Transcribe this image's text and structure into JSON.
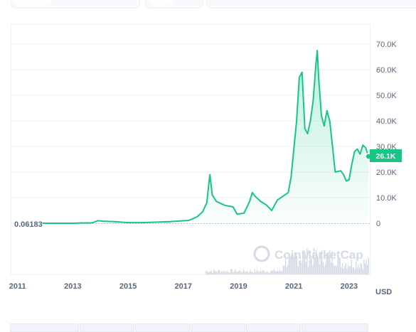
{
  "chart_data": {
    "type": "area",
    "yaxis": {
      "ticks": [
        "70.0K",
        "60.0K",
        "50.0K",
        "40.0K",
        "30.0K",
        "20.0K",
        "10.0K",
        "0"
      ],
      "range": [
        0,
        70000
      ]
    },
    "xaxis": {
      "ticks": [
        "2011",
        "2013",
        "2015",
        "2017",
        "2019",
        "2021",
        "2023"
      ],
      "range": [
        2010.75,
        2023.75
      ]
    },
    "currency": "USD",
    "start_label": "0.06183",
    "current_value_label": "26.1K",
    "watermark": "CoinMarketCap",
    "series": [
      {
        "values": [
          [
            2011.9,
            3
          ],
          [
            2012.5,
            6
          ],
          [
            2013.0,
            13
          ],
          [
            2013.3,
            100
          ],
          [
            2013.7,
            130
          ],
          [
            2013.9,
            1000
          ],
          [
            2014.1,
            800
          ],
          [
            2014.5,
            600
          ],
          [
            2015.0,
            250
          ],
          [
            2015.5,
            260
          ],
          [
            2016.0,
            420
          ],
          [
            2016.5,
            650
          ],
          [
            2016.9,
            900
          ],
          [
            2017.2,
            1100
          ],
          [
            2017.5,
            2500
          ],
          [
            2017.7,
            4500
          ],
          [
            2017.85,
            8000
          ],
          [
            2017.96,
            19000
          ],
          [
            2018.05,
            11000
          ],
          [
            2018.2,
            8500
          ],
          [
            2018.5,
            7000
          ],
          [
            2018.8,
            6400
          ],
          [
            2018.95,
            3500
          ],
          [
            2019.2,
            4000
          ],
          [
            2019.4,
            8500
          ],
          [
            2019.5,
            12000
          ],
          [
            2019.6,
            10500
          ],
          [
            2019.8,
            8500
          ],
          [
            2020.0,
            7200
          ],
          [
            2020.2,
            5000
          ],
          [
            2020.4,
            9000
          ],
          [
            2020.6,
            10500
          ],
          [
            2020.8,
            12000
          ],
          [
            2020.9,
            18000
          ],
          [
            2021.0,
            29000
          ],
          [
            2021.1,
            40000
          ],
          [
            2021.2,
            57000
          ],
          [
            2021.3,
            59000
          ],
          [
            2021.4,
            37000
          ],
          [
            2021.5,
            35000
          ],
          [
            2021.6,
            40000
          ],
          [
            2021.7,
            48000
          ],
          [
            2021.8,
            62000
          ],
          [
            2021.85,
            67500
          ],
          [
            2021.9,
            57000
          ],
          [
            2022.0,
            42000
          ],
          [
            2022.1,
            38000
          ],
          [
            2022.2,
            44000
          ],
          [
            2022.3,
            40000
          ],
          [
            2022.4,
            30000
          ],
          [
            2022.5,
            20000
          ],
          [
            2022.7,
            20500
          ],
          [
            2022.8,
            19000
          ],
          [
            2022.9,
            16500
          ],
          [
            2023.0,
            17000
          ],
          [
            2023.1,
            23000
          ],
          [
            2023.2,
            28000
          ],
          [
            2023.3,
            29000
          ],
          [
            2023.4,
            27000
          ],
          [
            2023.5,
            30500
          ],
          [
            2023.6,
            29500
          ],
          [
            2023.7,
            26100
          ]
        ]
      }
    ],
    "volume_extent": [
      2017.8,
      2023.7
    ],
    "colors": {
      "line": "#16c784",
      "fill_top": "#16c784",
      "marker_bg": "#16c784",
      "baseline": "#9aa5b8",
      "start_line": "#ea3943",
      "grid": "#eff2f5",
      "axis_text": "#58667e",
      "volume": "#cfd6e4"
    }
  }
}
